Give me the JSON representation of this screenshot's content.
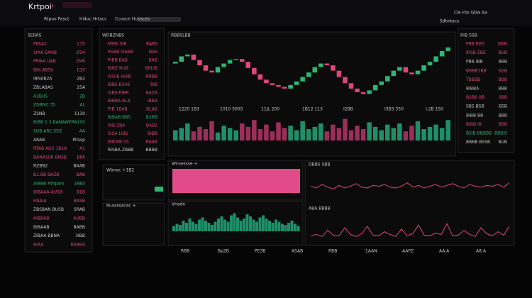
{
  "header": {
    "logo": "Krtpoi",
    "logo_mark": "4:",
    "tabs": [
      "Rtpoo Pasct",
      "Hi4oc Hrtacc",
      "Ccooce Hubsces"
    ],
    "status": "Cle Fbs Gbw Aa",
    "sub": "Sdtnkacs"
  },
  "left_list": {
    "title": "SERAS",
    "rows": [
      {
        "l": "PPAA2",
        "v": "23S",
        "c": "#e0457b"
      },
      {
        "l": "SIAA EAMB",
        "v": "25M",
        "c": "#e0457b"
      },
      {
        "l": "PPIAA UAB",
        "v": "2M6",
        "c": "#e0457b"
      },
      {
        "l": "BIN ABSU",
        "v": "E10",
        "c": "#e0457b"
      },
      {
        "l": "IBNAB2A",
        "v": "2B2",
        "c": "#c8c8c8"
      },
      {
        "l": "ZBLABAS",
        "v": "25A",
        "c": "#c8c8c8"
      },
      {
        "l": "A2BUS",
        "v": "2B",
        "c": "#2bb673"
      },
      {
        "l": "ZDBNC 35",
        "v": "AL",
        "c": "#2bb673"
      },
      {
        "l": "ZSNB",
        "v": "1130",
        "c": "#c8c8c8"
      },
      {
        "l": "RIBB 1 3.BANAWER",
        "v": "A100",
        "c": "#2bb673"
      },
      {
        "l": "SUB ARC SD2",
        "v": "AA",
        "c": "#2bb673"
      },
      {
        "l": "ARAB",
        "v": "Pitssp",
        "c": "#c8c8c8"
      },
      {
        "l": "RTAB AGS 1B1A",
        "v": "A1",
        "c": "#e0457b"
      },
      {
        "l": "BANASSR BNSB",
        "v": "BPA",
        "c": "#e0457b"
      },
      {
        "l": "RZBB2",
        "v": "BAAB",
        "c": "#c8c8c8"
      },
      {
        "l": "B1.BB BAZB",
        "v": "BAB",
        "c": "#e0457b"
      },
      {
        "l": "AIBBB Rthpars",
        "v": "1BBS",
        "c": "#2bb673"
      },
      {
        "l": "BIBAAA AUSB",
        "v": "BLB",
        "c": "#e0457b"
      },
      {
        "l": "RNAIA",
        "v": "BASB",
        "c": "#e0457b"
      },
      {
        "l": "ZBSBAN BUSB",
        "v": "SRAB",
        "c": "#c8c8c8"
      },
      {
        "l": "AIBBAB",
        "v": "AUBB",
        "c": "#e0457b"
      },
      {
        "l": "BIBAAB",
        "v": "BABB",
        "c": "#c8c8c8"
      },
      {
        "l": "ZIBAA BBNA",
        "v": "3IBB",
        "c": "#c8c8c8"
      },
      {
        "l": "BIAA",
        "v": "BABBA",
        "c": "#e0457b"
      }
    ]
  },
  "mid_list": {
    "title": "WDBZNBS",
    "rows": [
      {
        "l": "MEBI ISB",
        "v": "BABS",
        "c": "#e0457b"
      },
      {
        "l": "RSBB ISABB",
        "v": "BAS",
        "c": "#e0457b"
      },
      {
        "l": "PIBB BAB",
        "v": "BAB",
        "c": "#e0457b"
      },
      {
        "l": "BIBZ NUB",
        "v": "BRLIB",
        "c": "#e0457b"
      },
      {
        "l": "AIGIB IAAB",
        "v": "BNBB",
        "c": "#e0457b"
      },
      {
        "l": "BIBS B34S",
        "v": "BIB",
        "c": "#e0457b"
      },
      {
        "l": "SIBS RIBR",
        "v": "BAZA",
        "c": "#e0457b"
      },
      {
        "l": "BIBBA BLA",
        "v": "IBBA",
        "c": "#e0457b"
      },
      {
        "l": "PIB 1BAB",
        "v": "BLAB",
        "c": "#e0457b"
      },
      {
        "l": "BIBAB BBS",
        "v": "B2BB",
        "c": "#2bb673"
      },
      {
        "l": "RIB ZBA",
        "v": "BAB2",
        "c": "#e0457b"
      },
      {
        "l": "SISA LIBS",
        "v": "BIBB",
        "c": "#e0457b"
      },
      {
        "l": "BIB BB SS",
        "v": "BAAB",
        "c": "#e0457b"
      },
      {
        "l": "RISBA ZBBB",
        "v": "BBBB",
        "c": "#c8c8c8"
      }
    ]
  },
  "right_list": {
    "title": "RIB SSB",
    "rows": [
      {
        "l": "PRB RBS",
        "v": "SBIB",
        "c": "#e0457b"
      },
      {
        "l": "IRSB ZBE",
        "v": "BUB",
        "c": "#e0457b"
      },
      {
        "l": "PBB IBB",
        "v": "BBB",
        "c": "#c8c8c8"
      },
      {
        "l": "BRBB1BB",
        "v": "B2B",
        "c": "#e0457b"
      },
      {
        "l": "TBBBB",
        "v": "BBB",
        "c": "#e0457b"
      },
      {
        "l": "BIBBA",
        "v": "BBB",
        "c": "#c8c8c8"
      },
      {
        "l": "BSBB BB",
        "v": "SBB",
        "c": "#e0457b"
      },
      {
        "l": "SBS BSB",
        "v": "BSB",
        "c": "#c8c8c8"
      },
      {
        "l": "BIBB BB",
        "v": "BBB",
        "c": "#c8c8c8"
      },
      {
        "l": "BIBB IB",
        "v": "BBB",
        "c": "#e0457b"
      },
      {
        "l": "BSIB BBBBB",
        "v": "BBBIS",
        "c": "#2bb673"
      },
      {
        "l": "BBBB BSSB",
        "v": "BUB",
        "c": "#c8c8c8"
      }
    ]
  },
  "main_chart": {
    "title": "RBBSLBB",
    "ylim": [
      30,
      95
    ],
    "up": "#2bb673",
    "down": "#e0457b",
    "x_labels": [
      "1220 1B3",
      "1010 300S",
      "11JL 200",
      "1B12 113",
      "I2BB",
      "I3B3 350",
      "I.2B 150"
    ],
    "open": [
      70,
      72,
      78,
      80,
      74,
      68,
      62,
      60,
      66,
      70,
      74,
      75,
      72,
      65,
      58,
      52,
      48,
      46,
      44,
      42,
      46,
      50,
      55,
      60,
      66,
      70,
      68,
      62,
      55,
      48,
      42,
      38,
      36,
      40,
      46,
      50,
      56,
      62,
      66,
      60,
      58,
      62,
      68,
      72,
      78,
      84
    ],
    "close": [
      72,
      78,
      80,
      74,
      68,
      62,
      60,
      66,
      70,
      74,
      75,
      72,
      65,
      58,
      52,
      48,
      46,
      44,
      42,
      46,
      50,
      55,
      60,
      66,
      70,
      68,
      62,
      55,
      48,
      42,
      38,
      36,
      40,
      46,
      50,
      56,
      62,
      66,
      60,
      58,
      62,
      68,
      72,
      78,
      84,
      88
    ],
    "volume": [
      18,
      22,
      30,
      16,
      24,
      20,
      34,
      14,
      26,
      22,
      18,
      30,
      24,
      36,
      20,
      28,
      16,
      32,
      22,
      26,
      18,
      34,
      20,
      24,
      30,
      16,
      28,
      22,
      38,
      18,
      26,
      20,
      32,
      24,
      18,
      28,
      22,
      30,
      16,
      26,
      34,
      20,
      24,
      28,
      22,
      36
    ],
    "vlim": [
      0,
      40
    ]
  },
  "panels": {
    "p1": "Wbnac +1B2",
    "p2": "Rusassacac +",
    "p3": "Wnsessse +",
    "p4": "Vnadn"
  },
  "histogram": {
    "color": "#1f8f6a",
    "ylim": [
      0,
      40
    ],
    "values": [
      10,
      14,
      12,
      20,
      16,
      24,
      18,
      14,
      22,
      26,
      20,
      16,
      12,
      18,
      24,
      28,
      22,
      18,
      30,
      34,
      26,
      20,
      24,
      32,
      28,
      22,
      18,
      26,
      30,
      24,
      20,
      16,
      22,
      18,
      14,
      12,
      16,
      20,
      14,
      10
    ]
  },
  "line1": {
    "title": "DBBS SBB",
    "color": "#e0457b",
    "ylim": [
      0,
      40
    ],
    "values": [
      22,
      20,
      24,
      21,
      19,
      23,
      20,
      22,
      25,
      21,
      20,
      23,
      22,
      24,
      21,
      20,
      22,
      26,
      21,
      23,
      20,
      22,
      24,
      21,
      23,
      25,
      22,
      20,
      24,
      22,
      21,
      23,
      22,
      24,
      21,
      26
    ]
  },
  "line2": {
    "title": "ABA BBBB",
    "color": "#e0457b",
    "ylim": [
      0,
      40
    ],
    "values": [
      6,
      8,
      5,
      14,
      7,
      6,
      18,
      8,
      5,
      9,
      20,
      7,
      6,
      12,
      8,
      5,
      16,
      6,
      9,
      22,
      7,
      6,
      10,
      8,
      24,
      6,
      7,
      14,
      8,
      5,
      18,
      9,
      6,
      12,
      7,
      20
    ]
  },
  "bottom_axis": [
    "RBB",
    "Bp2B",
    "PE3B",
    "ASAB",
    "RBB",
    "1AAN",
    "AAPZ",
    "AA.A",
    "A8.A"
  ]
}
